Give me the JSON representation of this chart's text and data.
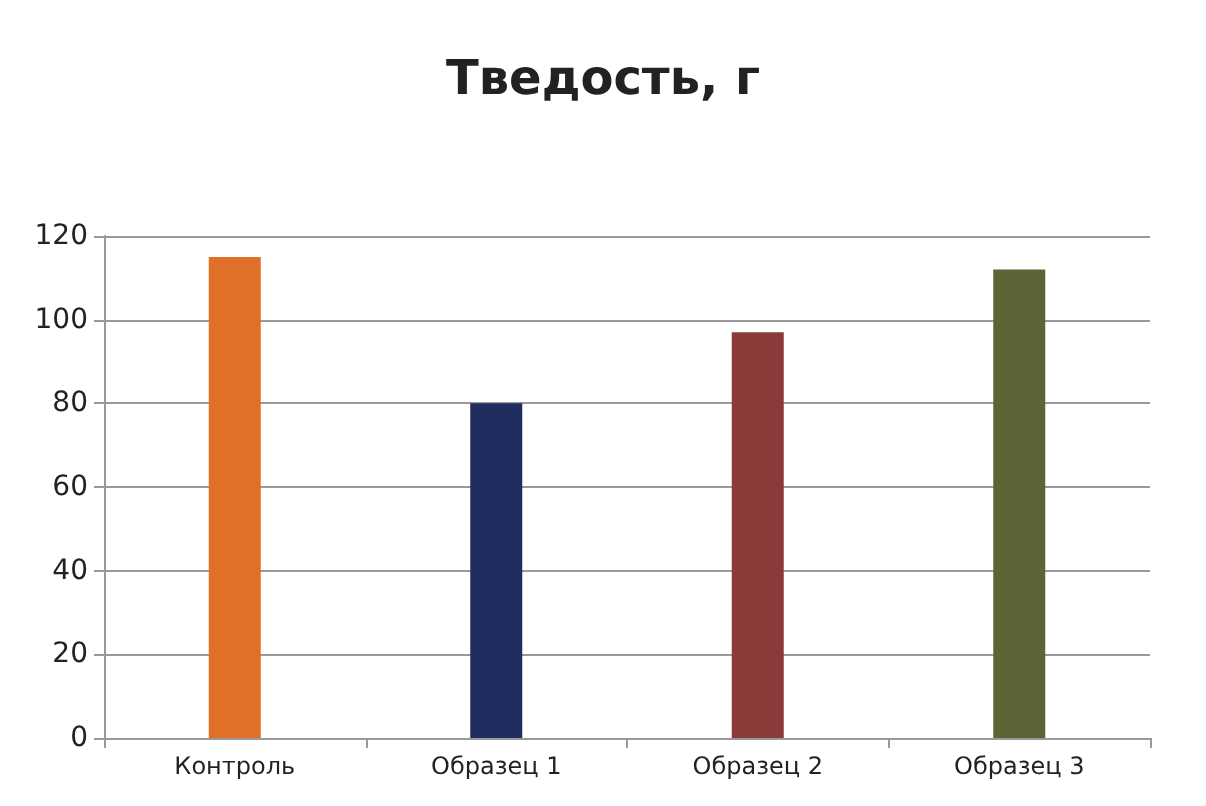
{
  "chart_data": {
    "type": "bar",
    "title": "Тведость, г",
    "categories": [
      "Контроль",
      "Образец 1",
      "Образец 2",
      "Образец 3"
    ],
    "values": [
      115,
      80,
      97,
      112
    ],
    "colors": [
      "#e07028",
      "#1f2d5f",
      "#8b3a3a",
      "#5a6434"
    ],
    "ylim": [
      0,
      120
    ],
    "yticks": [
      0,
      20,
      40,
      60,
      80,
      100,
      120
    ],
    "grid": "y"
  }
}
